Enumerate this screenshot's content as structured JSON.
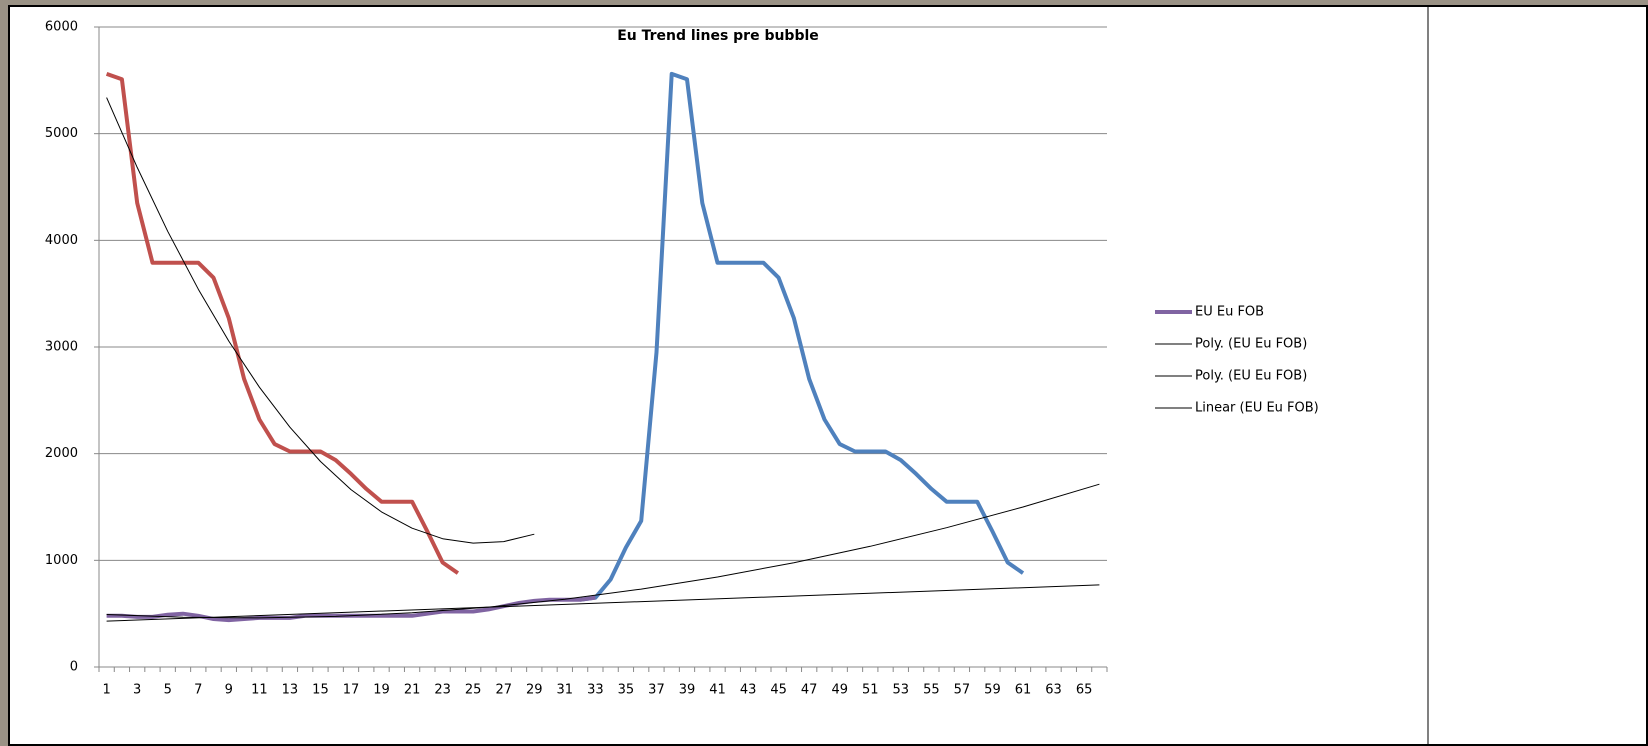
{
  "chart_data": {
    "type": "line",
    "title": "Eu Trend lines pre bubble",
    "categories": [
      1,
      null,
      3,
      null,
      5,
      null,
      7,
      null,
      9,
      null,
      11,
      null,
      13,
      null,
      15,
      null,
      17,
      null,
      19,
      null,
      21,
      null,
      23,
      null,
      25,
      null,
      27,
      null,
      29,
      null,
      31,
      null,
      33,
      null,
      35,
      null,
      37,
      null,
      39,
      null,
      41,
      null,
      43,
      null,
      45,
      null,
      47,
      null,
      49,
      null,
      51,
      null,
      53,
      null,
      55,
      null,
      57,
      null,
      59,
      null,
      61,
      null,
      63,
      null,
      65,
      null
    ],
    "ylim": [
      0,
      6000
    ],
    "yticks": [
      0,
      1000,
      2000,
      3000,
      4000,
      5000,
      6000
    ],
    "grid": true,
    "series": [
      {
        "color": "#c0504d",
        "line_width": 4,
        "values": [
          5560,
          5510,
          4350,
          3790,
          3790,
          3790,
          3790,
          3650,
          3270,
          2700,
          2320,
          2090,
          2020,
          2020,
          2020,
          1940,
          1810,
          1670,
          1550,
          1550,
          1550,
          1270,
          980,
          880,
          null,
          null,
          null,
          null,
          null,
          null,
          null,
          null,
          null,
          null,
          null,
          null,
          null,
          null,
          null,
          null,
          null,
          null,
          null,
          null,
          null,
          null,
          null,
          null,
          null,
          null,
          null,
          null,
          null,
          null,
          null,
          null,
          null,
          null,
          null,
          null,
          null,
          null,
          null,
          null,
          null,
          null
        ]
      },
      {
        "color": "#4f81bd",
        "line_width": 4,
        "values": [
          null,
          null,
          null,
          null,
          null,
          null,
          null,
          null,
          null,
          null,
          null,
          null,
          null,
          null,
          null,
          null,
          null,
          null,
          null,
          null,
          null,
          null,
          null,
          null,
          null,
          null,
          null,
          null,
          null,
          null,
          null,
          630,
          650,
          820,
          1120,
          1370,
          2950,
          5560,
          5510,
          4350,
          3790,
          3790,
          3790,
          3790,
          3650,
          3270,
          2700,
          2320,
          2090,
          2020,
          2020,
          2020,
          1940,
          1810,
          1670,
          1550,
          1550,
          1550,
          1270,
          980,
          880,
          null,
          null,
          null,
          null,
          null
        ]
      },
      {
        "name": "EU Eu FOB",
        "color": "#8064a2",
        "line_width": 4,
        "values": [
          480,
          480,
          470,
          470,
          490,
          500,
          480,
          450,
          440,
          450,
          460,
          460,
          460,
          480,
          480,
          480,
          480,
          480,
          480,
          480,
          480,
          500,
          520,
          520,
          520,
          540,
          570,
          600,
          620,
          630,
          630,
          630,
          650,
          null,
          null,
          null,
          null,
          null,
          null,
          null,
          null,
          null,
          null,
          null,
          null,
          null,
          null,
          null,
          null,
          null,
          null,
          null,
          null,
          null,
          null,
          null,
          null,
          null,
          null,
          null,
          null,
          null,
          null,
          null,
          null,
          null
        ]
      },
      {
        "name": "Poly. (EU  Eu FOB)",
        "color": "#000000",
        "line_width": 1,
        "x": [
          1,
          3,
          5,
          7,
          9,
          11,
          13,
          15,
          17,
          19,
          21,
          23,
          25,
          27,
          29
        ],
        "values": [
          5338,
          4684,
          4085,
          3542,
          3055,
          2623,
          2248,
          1927,
          1663,
          1454,
          1301,
          1203,
          1162,
          1176,
          1245
        ]
      },
      {
        "name": "Poly. (EU  Eu FOB)",
        "color": "#000000",
        "line_width": 1,
        "x": [
          1,
          6,
          11,
          16,
          21,
          26,
          31,
          36,
          41,
          46,
          51,
          56,
          61,
          66
        ],
        "values": [
          492,
          466,
          460,
          474,
          508,
          562,
          636,
          730,
          844,
          978,
          1132,
          1306,
          1500,
          1714
        ]
      },
      {
        "name": "Linear (EU Eu FOB)",
        "color": "#000000",
        "line_width": 1,
        "x": [
          1,
          66
        ],
        "values": [
          430,
          770
        ]
      }
    ]
  }
}
